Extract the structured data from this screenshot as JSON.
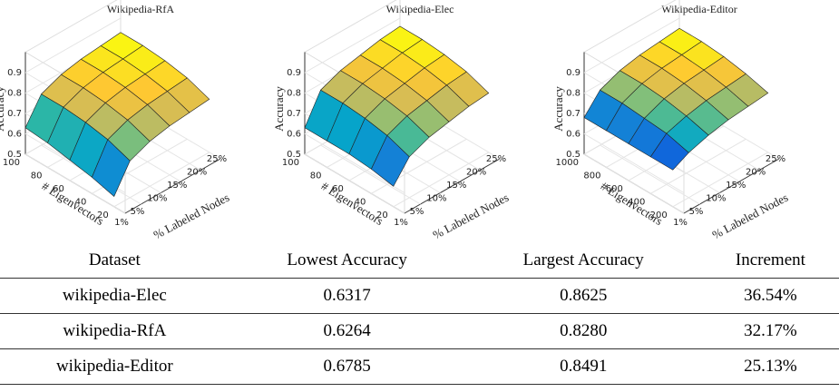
{
  "chart_data": [
    {
      "type": "surface",
      "title": "Wikipedia-RfA",
      "xlabel": "% Labeled Nodes",
      "ylabel": "# Eigenvectors",
      "zlabel": "Accuracy",
      "x": [
        1,
        5,
        10,
        15,
        20,
        25
      ],
      "y": [
        20,
        40,
        60,
        80,
        100
      ],
      "values": [
        [
          0.55,
          0.68,
          0.72,
          0.74,
          0.75,
          0.76
        ],
        [
          0.58,
          0.72,
          0.76,
          0.78,
          0.79,
          0.8
        ],
        [
          0.6,
          0.74,
          0.78,
          0.8,
          0.81,
          0.82
        ],
        [
          0.62,
          0.75,
          0.79,
          0.81,
          0.82,
          0.83
        ],
        [
          0.63,
          0.75,
          0.79,
          0.81,
          0.82,
          0.83
        ]
      ],
      "xlim": [
        1,
        25
      ],
      "xticks": [
        {
          "value": 1,
          "label": "1%"
        },
        {
          "value": 5,
          "label": "5%"
        },
        {
          "value": 10,
          "label": "10%"
        },
        {
          "value": 15,
          "label": "15%"
        },
        {
          "value": 20,
          "label": "20%"
        },
        {
          "value": 25,
          "label": "25%"
        }
      ],
      "ylim": [
        10,
        100
      ],
      "yticks": [
        20,
        40,
        60,
        80,
        100
      ],
      "zlim": [
        0.5,
        1.0
      ],
      "zticks": [
        0.5,
        0.6,
        0.7,
        0.8,
        0.9
      ],
      "colormap": "parula",
      "grid": true
    },
    {
      "type": "surface",
      "title": "Wikipedia-Elec",
      "xlabel": "% Labeled Nodes",
      "ylabel": "# Eigenvectors",
      "zlabel": "Accuracy",
      "x": [
        1,
        5,
        10,
        15,
        20,
        25
      ],
      "y": [
        20,
        40,
        60,
        80,
        100
      ],
      "values": [
        [
          0.6,
          0.7,
          0.74,
          0.76,
          0.78,
          0.79
        ],
        [
          0.62,
          0.74,
          0.78,
          0.8,
          0.82,
          0.83
        ],
        [
          0.63,
          0.76,
          0.8,
          0.82,
          0.84,
          0.85
        ],
        [
          0.63,
          0.77,
          0.81,
          0.83,
          0.85,
          0.86
        ],
        [
          0.63,
          0.77,
          0.81,
          0.83,
          0.85,
          0.86
        ]
      ],
      "xlim": [
        1,
        25
      ],
      "xticks": [
        {
          "value": 1,
          "label": "1%"
        },
        {
          "value": 5,
          "label": "5%"
        },
        {
          "value": 10,
          "label": "10%"
        },
        {
          "value": 15,
          "label": "15%"
        },
        {
          "value": 20,
          "label": "20%"
        },
        {
          "value": 25,
          "label": "25%"
        }
      ],
      "ylim": [
        10,
        100
      ],
      "yticks": [
        20,
        40,
        60,
        80,
        100
      ],
      "zlim": [
        0.5,
        1.0
      ],
      "zticks": [
        0.5,
        0.6,
        0.7,
        0.8,
        0.9
      ],
      "colormap": "parula",
      "grid": true
    },
    {
      "type": "surface",
      "title": "Wikipedia-Editor",
      "xlabel": "% Labeled Nodes",
      "ylabel": "# Eigenvectors",
      "zlabel": "Accuracy",
      "x": [
        1,
        5,
        10,
        15,
        20,
        25
      ],
      "y": [
        200,
        400,
        600,
        800,
        1000
      ],
      "values": [
        [
          0.68,
          0.72,
          0.75,
          0.77,
          0.78,
          0.79
        ],
        [
          0.68,
          0.75,
          0.78,
          0.8,
          0.81,
          0.82
        ],
        [
          0.68,
          0.76,
          0.8,
          0.82,
          0.83,
          0.84
        ],
        [
          0.68,
          0.77,
          0.81,
          0.83,
          0.84,
          0.85
        ],
        [
          0.68,
          0.77,
          0.81,
          0.83,
          0.84,
          0.85
        ]
      ],
      "xlim": [
        1,
        25
      ],
      "xticks": [
        {
          "value": 1,
          "label": "1%"
        },
        {
          "value": 5,
          "label": "5%"
        },
        {
          "value": 10,
          "label": "10%"
        },
        {
          "value": 15,
          "label": "15%"
        },
        {
          "value": 20,
          "label": "20%"
        },
        {
          "value": 25,
          "label": "25%"
        }
      ],
      "ylim": [
        100,
        1000
      ],
      "yticks": [
        200,
        400,
        600,
        800,
        1000
      ],
      "zlim": [
        0.5,
        1.0
      ],
      "zticks": [
        0.5,
        0.6,
        0.7,
        0.8,
        0.9
      ],
      "colormap": "parula",
      "grid": true
    }
  ],
  "table": {
    "header": [
      "Dataset",
      "Lowest Accuracy",
      "Largest Accuracy",
      "Increment"
    ],
    "rows": [
      [
        "wikipedia-Elec",
        "0.6317",
        "0.8625",
        "36.54%"
      ],
      [
        "wikipedia-RfA",
        "0.6264",
        "0.8280",
        "32.17%"
      ],
      [
        "wikipedia-Editor",
        "0.6785",
        "0.8491",
        "25.13%"
      ]
    ]
  }
}
